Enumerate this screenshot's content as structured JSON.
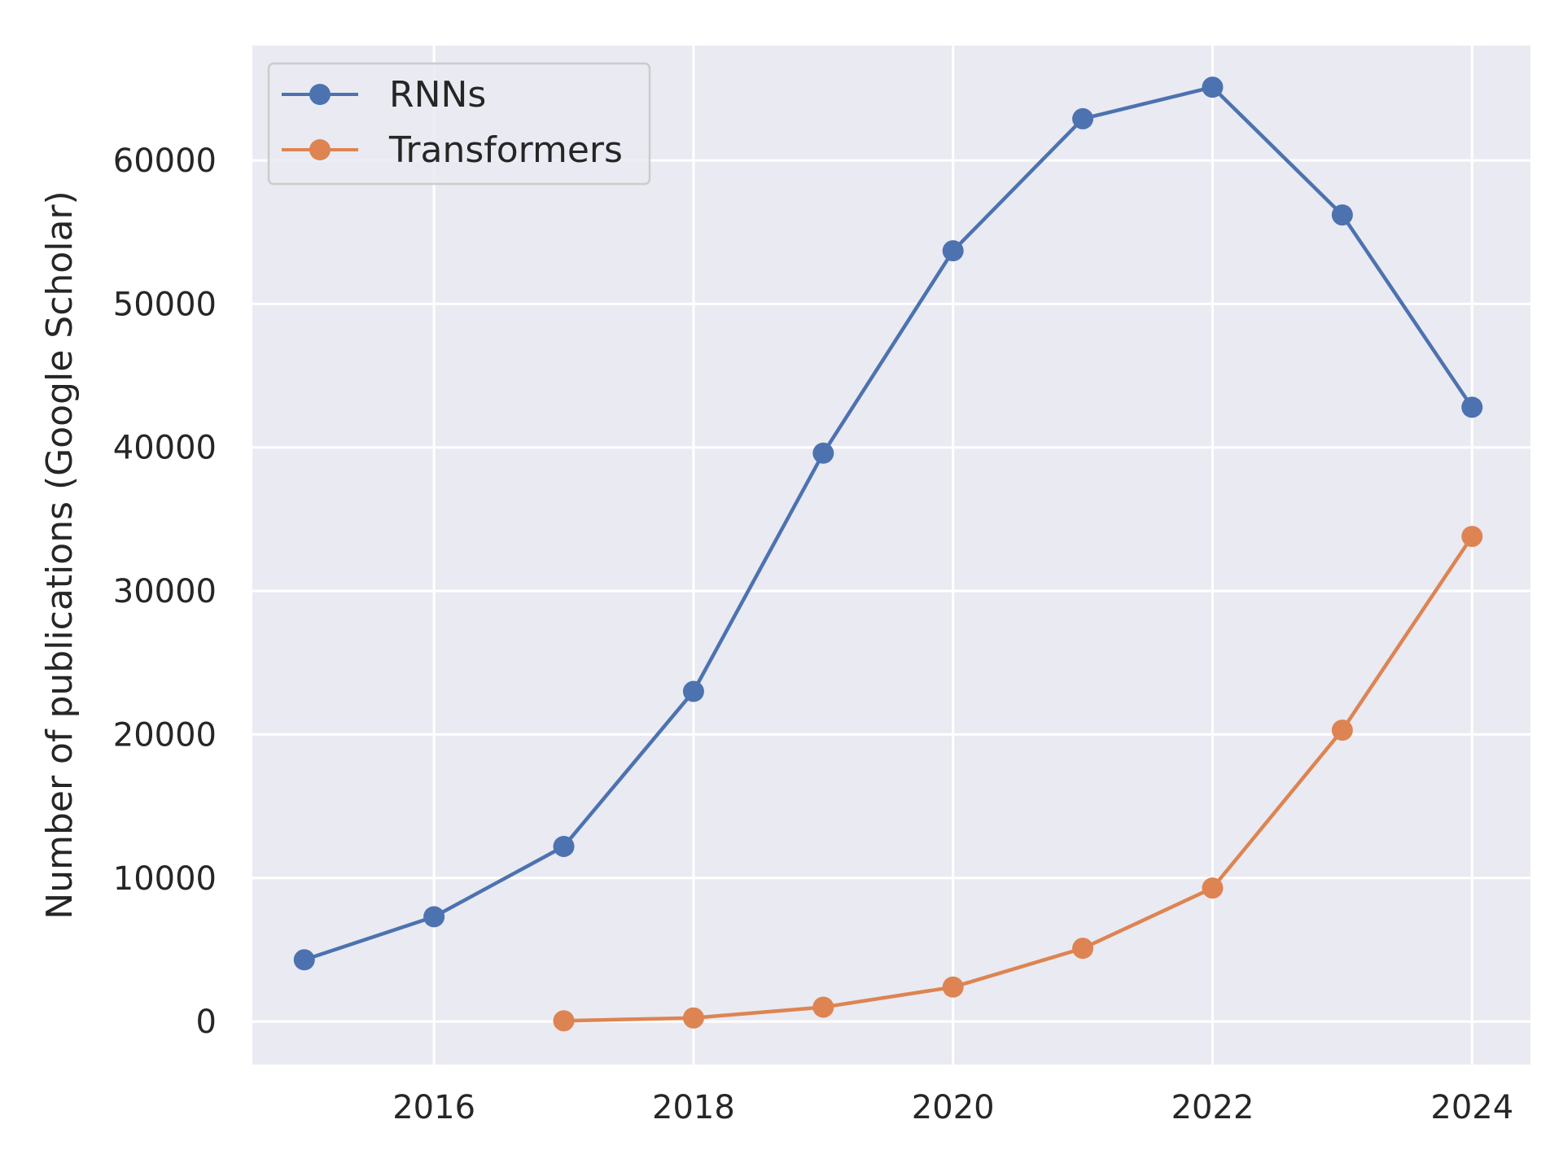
{
  "chart_data": {
    "type": "line",
    "title": "",
    "xlabel": "",
    "ylabel": "Number of publications (Google Scholar)",
    "xlim": [
      2014.6,
      2024.45
    ],
    "ylim": [
      -3000,
      68000
    ],
    "x_ticks": [
      2016,
      2018,
      2020,
      2022,
      2024
    ],
    "y_ticks": [
      0,
      10000,
      20000,
      30000,
      40000,
      50000,
      60000
    ],
    "grid": true,
    "legend_position": "top-left",
    "colors": {
      "plot_background": "#eaeaf2",
      "grid": "#ffffff",
      "text": "#262626",
      "legend_border": "#cccccc"
    },
    "series": [
      {
        "name": "RNNs",
        "color": "#4c72b0",
        "x": [
          2015,
          2016,
          2017,
          2018,
          2019,
          2020,
          2021,
          2022,
          2023,
          2024
        ],
        "y": [
          4300,
          7300,
          12200,
          23000,
          39600,
          53700,
          62900,
          65100,
          56200,
          42800
        ]
      },
      {
        "name": "Transformers",
        "color": "#dd8452",
        "x": [
          2017,
          2018,
          2019,
          2020,
          2021,
          2022,
          2023,
          2024
        ],
        "y": [
          50,
          250,
          1000,
          2400,
          5100,
          9300,
          20300,
          33800
        ]
      }
    ]
  }
}
